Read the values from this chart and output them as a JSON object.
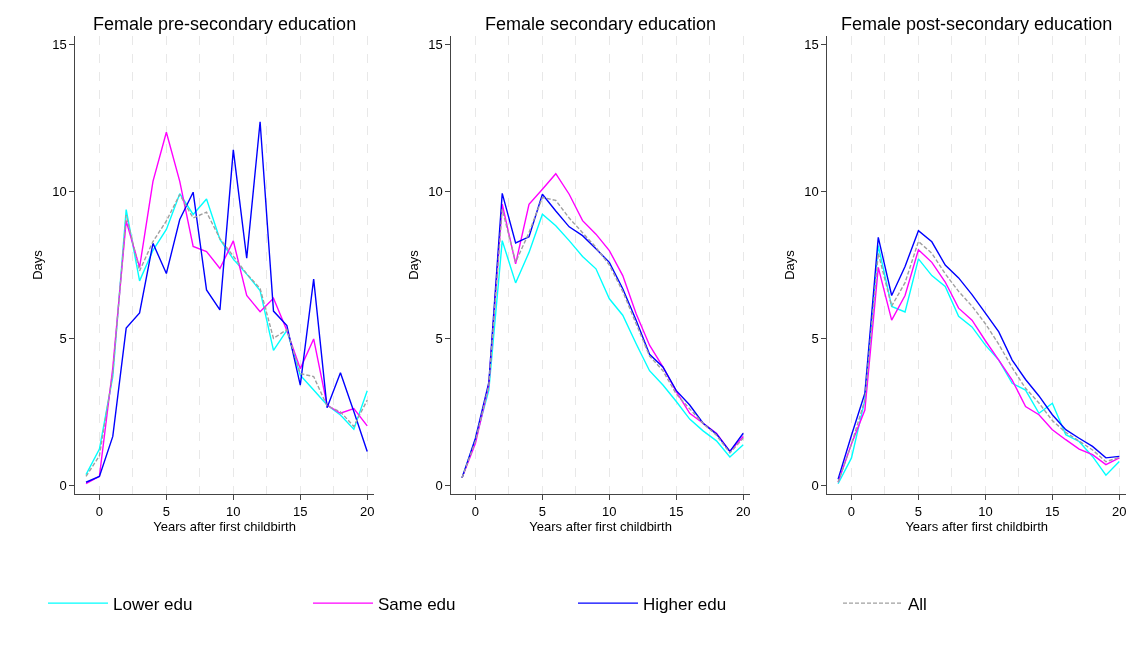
{
  "chart_data": [
    {
      "type": "line",
      "title": "Female pre-secondary education",
      "xlabel": "Years after first childbirth",
      "ylabel": "Days",
      "x": [
        -1,
        0,
        1,
        2,
        3,
        4,
        5,
        6,
        7,
        8,
        9,
        10,
        11,
        12,
        13,
        14,
        15,
        16,
        17,
        18,
        19,
        20
      ],
      "xlim": [
        -1.8,
        20.5
      ],
      "xticks": [
        0,
        5,
        10,
        15,
        20
      ],
      "ylim": [
        -0.3,
        15.3
      ],
      "yticks": [
        0,
        5,
        10,
        15
      ],
      "grid": "x",
      "legend": "bottom",
      "series": [
        {
          "name": "Lower edu",
          "color": "#00ffff",
          "values": [
            0.36,
            1.23,
            3.7,
            9.39,
            6.96,
            8.0,
            8.71,
            9.93,
            9.22,
            9.75,
            8.37,
            7.7,
            7.19,
            6.63,
            4.59,
            5.27,
            3.75,
            3.24,
            2.73,
            2.39,
            1.91,
            3.22
          ]
        },
        {
          "name": "Same edu",
          "color": "#ff00ff",
          "values": [
            0.05,
            0.3,
            4.0,
            9.0,
            7.42,
            10.35,
            12.02,
            10.35,
            8.13,
            7.96,
            7.38,
            8.32,
            6.46,
            5.91,
            6.37,
            5.27,
            3.97,
            4.98,
            2.73,
            2.45,
            2.61,
            2.02
          ]
        },
        {
          "name": "Higher edu",
          "color": "#0000ff",
          "values": [
            0.1,
            0.3,
            1.66,
            5.35,
            5.87,
            8.24,
            7.21,
            9.05,
            9.98,
            6.65,
            5.97,
            11.42,
            7.73,
            12.38,
            5.93,
            5.44,
            3.41,
            7.02,
            2.64,
            3.83,
            2.51,
            1.15
          ]
        },
        {
          "name": "All",
          "color": "#a0a0a0",
          "line_style": "dashed",
          "values": [
            0.3,
            1.0,
            3.8,
            9.2,
            7.3,
            8.3,
            9.0,
            9.9,
            9.1,
            9.3,
            8.4,
            7.8,
            7.2,
            6.7,
            5.0,
            5.3,
            3.8,
            3.7,
            2.7,
            2.5,
            2.0,
            2.9
          ]
        }
      ]
    },
    {
      "type": "line",
      "title": "Female secondary education",
      "xlabel": "Years after first childbirth",
      "ylabel": "Days",
      "x": [
        -1,
        0,
        1,
        2,
        3,
        4,
        5,
        6,
        7,
        8,
        9,
        10,
        11,
        12,
        13,
        14,
        15,
        16,
        17,
        18,
        19,
        20
      ],
      "xlim": [
        -1.8,
        20.5
      ],
      "xticks": [
        0,
        5,
        10,
        15,
        20
      ],
      "ylim": [
        -0.3,
        15.3
      ],
      "yticks": [
        0,
        5,
        10,
        15
      ],
      "grid": "x",
      "series": [
        {
          "color": "#00ffff",
          "values": [
            0.25,
            1.55,
            3.24,
            8.33,
            6.89,
            7.93,
            9.23,
            8.84,
            8.33,
            7.79,
            7.37,
            6.35,
            5.79,
            4.82,
            3.9,
            3.41,
            2.85,
            2.25,
            1.85,
            1.51,
            0.96,
            1.38
          ]
        },
        {
          "color": "#ff00ff",
          "values": [
            0.25,
            1.43,
            3.4,
            9.57,
            7.54,
            9.57,
            10.08,
            10.61,
            9.91,
            9.01,
            8.55,
            7.99,
            7.14,
            5.84,
            4.77,
            4.03,
            3.19,
            2.45,
            2.11,
            1.77,
            1.15,
            1.66
          ]
        },
        {
          "color": "#0000ff",
          "values": [
            0.25,
            1.6,
            3.5,
            9.94,
            8.25,
            8.46,
            9.91,
            9.34,
            8.8,
            8.5,
            8.05,
            7.59,
            6.69,
            5.62,
            4.46,
            4.03,
            3.22,
            2.73,
            2.11,
            1.74,
            1.15,
            1.77
          ]
        },
        {
          "color": "#a0a0a0",
          "line_style": "dashed",
          "values": [
            0.25,
            1.5,
            3.4,
            9.4,
            7.6,
            8.6,
            9.8,
            9.7,
            9.1,
            8.6,
            8.1,
            7.5,
            6.6,
            5.5,
            4.4,
            3.9,
            3.1,
            2.6,
            2.1,
            1.7,
            1.1,
            1.6
          ]
        }
      ]
    },
    {
      "type": "line",
      "title": "Female post-secondary education",
      "xlabel": "Years after first childbirth",
      "ylabel": "Days",
      "x": [
        -1,
        0,
        1,
        2,
        3,
        4,
        5,
        6,
        7,
        8,
        9,
        10,
        11,
        12,
        13,
        14,
        15,
        16,
        17,
        18,
        19,
        20
      ],
      "xlim": [
        -1.8,
        20.5
      ],
      "xticks": [
        0,
        5,
        10,
        15,
        20
      ],
      "ylim": [
        -0.3,
        15.3
      ],
      "yticks": [
        0,
        5,
        10,
        15
      ],
      "grid": "x",
      "series": [
        {
          "color": "#00ffff",
          "values": [
            0.05,
            0.93,
            2.9,
            8.16,
            6.09,
            5.9,
            7.71,
            7.14,
            6.77,
            5.75,
            5.39,
            4.77,
            4.26,
            3.47,
            3.24,
            2.45,
            2.79,
            1.72,
            1.49,
            0.98,
            0.34,
            0.81
          ]
        },
        {
          "color": "#ff00ff",
          "values": [
            0.1,
            1.4,
            2.56,
            7.42,
            5.62,
            6.46,
            8.02,
            7.59,
            6.92,
            6.03,
            5.62,
            4.92,
            4.26,
            3.58,
            2.68,
            2.4,
            1.89,
            1.55,
            1.23,
            1.04,
            0.7,
            0.93
          ]
        },
        {
          "color": "#0000ff",
          "values": [
            0.2,
            1.7,
            3.13,
            8.44,
            6.46,
            7.45,
            8.67,
            8.29,
            7.5,
            7.06,
            6.49,
            5.86,
            5.22,
            4.26,
            3.6,
            3.04,
            2.4,
            1.89,
            1.6,
            1.32,
            0.93,
            0.98
          ]
        },
        {
          "color": "#a0a0a0",
          "line_style": "dashed",
          "values": [
            0.1,
            1.4,
            2.9,
            7.9,
            6.1,
            6.9,
            8.3,
            7.9,
            7.2,
            6.6,
            6.1,
            5.5,
            4.8,
            4.0,
            3.3,
            2.8,
            2.2,
            1.8,
            1.5,
            1.2,
            0.8,
            0.95
          ]
        }
      ]
    }
  ]
}
